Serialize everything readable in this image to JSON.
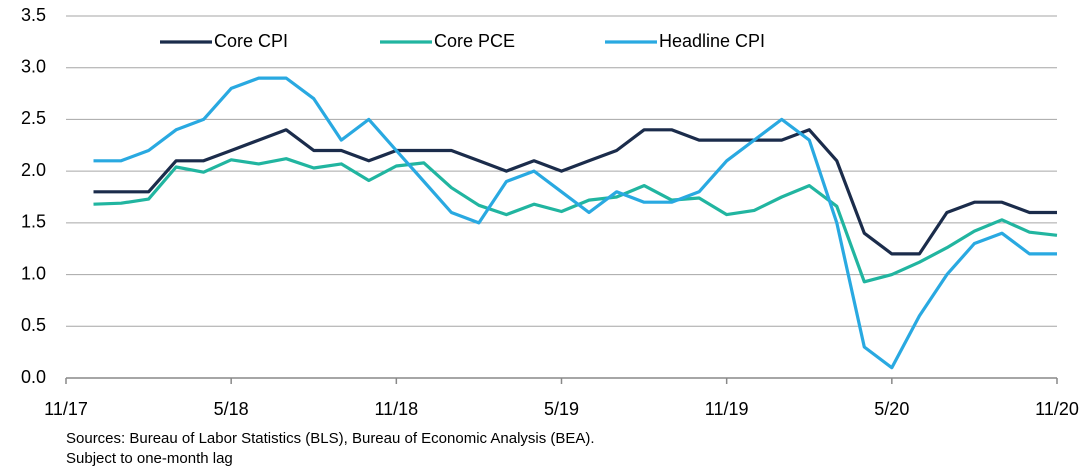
{
  "chart_data": {
    "type": "line",
    "categories": [
      "11/17",
      null,
      null,
      null,
      null,
      null,
      "5/18",
      null,
      null,
      null,
      null,
      null,
      "11/18",
      null,
      null,
      null,
      null,
      null,
      "5/19",
      null,
      null,
      null,
      null,
      null,
      "11/19",
      null,
      null,
      null,
      null,
      null,
      "5/20",
      null,
      null,
      null,
      null,
      null,
      "11/20"
    ],
    "series": [
      {
        "name": "Core CPI",
        "color": "#1b2c4b",
        "values": [
          null,
          1.8,
          1.8,
          1.8,
          2.1,
          2.1,
          2.2,
          2.3,
          2.4,
          2.2,
          2.2,
          2.1,
          2.2,
          2.2,
          2.2,
          2.1,
          2.0,
          2.1,
          2.0,
          2.1,
          2.2,
          2.4,
          2.4,
          2.3,
          2.3,
          2.3,
          2.3,
          2.4,
          2.1,
          1.4,
          1.2,
          1.2,
          1.6,
          1.7,
          1.7,
          1.6,
          1.6
        ]
      },
      {
        "name": "Core PCE",
        "color": "#21b5a0",
        "values": [
          null,
          1.68,
          1.69,
          1.73,
          2.04,
          1.99,
          2.11,
          2.07,
          2.12,
          2.03,
          2.07,
          1.91,
          2.05,
          2.08,
          1.84,
          1.67,
          1.58,
          1.68,
          1.61,
          1.72,
          1.75,
          1.86,
          1.72,
          1.74,
          1.58,
          1.62,
          1.75,
          1.86,
          1.66,
          0.93,
          1.0,
          1.12,
          1.26,
          1.42,
          1.53,
          1.41,
          1.38
        ]
      },
      {
        "name": "Headline CPI",
        "color": "#29a9e1",
        "values": [
          null,
          2.1,
          2.1,
          2.2,
          2.4,
          2.5,
          2.8,
          2.9,
          2.9,
          2.7,
          2.3,
          2.5,
          2.2,
          1.9,
          1.6,
          1.5,
          1.9,
          2.0,
          1.8,
          1.6,
          1.8,
          1.7,
          1.7,
          1.8,
          2.1,
          2.3,
          2.5,
          2.3,
          1.5,
          0.3,
          0.1,
          0.6,
          1.0,
          1.3,
          1.4,
          1.2,
          1.2
        ]
      }
    ],
    "ylim": [
      0,
      3.5
    ],
    "yticks": [
      {
        "value": 0,
        "label": "0.0"
      },
      0.5,
      {
        "value": 1,
        "label": "1.0"
      },
      1.5,
      {
        "value": 2,
        "label": "2.0"
      },
      2.5,
      {
        "value": 3,
        "label": "3.0"
      },
      3.5
    ],
    "grid": true,
    "legend": "top",
    "notes": [
      "Sources:  Bureau of Labor Statistics (BLS), Bureau of Economic Analysis (BEA).",
      "Subject to one-month lag"
    ]
  }
}
